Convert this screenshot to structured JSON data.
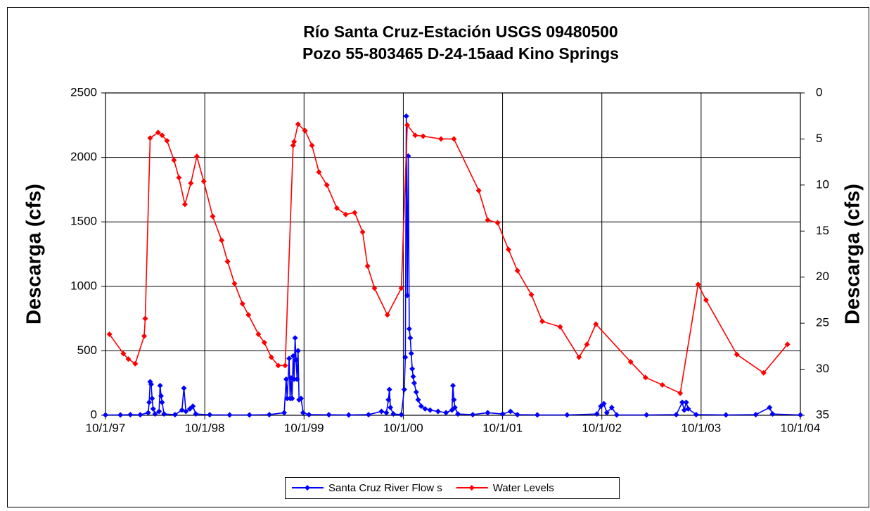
{
  "chart_data": {
    "type": "line",
    "title": [
      "Río Santa Cruz-Estación USGS 09480500",
      "Pozo 55-803465 D-24-15aad Kino Springs"
    ],
    "ylabel": "Descarga (cfs)",
    "y2label": "Descarga (cfs)",
    "xlim": [
      1997.75,
      2004.75
    ],
    "xticks": [
      {
        "value": 1997.75,
        "label": "10/1/97"
      },
      {
        "value": 1998.75,
        "label": "10/1/98"
      },
      {
        "value": 1999.75,
        "label": "10/1/99"
      },
      {
        "value": 2000.75,
        "label": "10/1/00"
      },
      {
        "value": 2001.75,
        "label": "10/1/01"
      },
      {
        "value": 2002.75,
        "label": "10/1/02"
      },
      {
        "value": 2003.75,
        "label": "10/1/03"
      },
      {
        "value": 2004.75,
        "label": "10/1/04"
      }
    ],
    "ylim": [
      0,
      2500
    ],
    "yticks": [
      0,
      500,
      1000,
      1500,
      2000,
      2500
    ],
    "y2lim": [
      35,
      0
    ],
    "y2ticks": [
      0,
      5,
      10,
      15,
      20,
      25,
      30,
      35
    ],
    "grid": true,
    "legend": "bottom",
    "series": [
      {
        "name": "Santa Cruz River Flow s",
        "color": "#0000ff",
        "x": [
          1997.75,
          1997.9,
          1998.0,
          1998.1,
          1998.18,
          1998.19,
          1998.2,
          1998.21,
          1998.22,
          1998.23,
          1998.25,
          1998.29,
          1998.3,
          1998.31,
          1998.32,
          1998.34,
          1998.45,
          1998.52,
          1998.54,
          1998.56,
          1998.6,
          1998.63,
          1998.66,
          1998.8,
          1999.0,
          1999.2,
          1999.4,
          1999.55,
          1999.57,
          1999.58,
          1999.6,
          1999.61,
          1999.62,
          1999.63,
          1999.64,
          1999.65,
          1999.66,
          1999.67,
          1999.68,
          1999.69,
          1999.7,
          1999.72,
          1999.74,
          1999.8,
          2000.0,
          2000.2,
          2000.4,
          2000.53,
          2000.58,
          2000.6,
          2000.61,
          2000.62,
          2000.65,
          2000.73,
          2000.76,
          2000.77,
          2000.78,
          2000.79,
          2000.8,
          2000.81,
          2000.82,
          2000.83,
          2000.84,
          2000.85,
          2000.86,
          2000.88,
          2000.9,
          2000.93,
          2000.97,
          2001.02,
          2001.1,
          2001.18,
          2001.24,
          2001.25,
          2001.26,
          2001.27,
          2001.3,
          2001.45,
          2001.6,
          2001.75,
          2001.83,
          2001.9,
          2002.1,
          2002.4,
          2002.7,
          2002.74,
          2002.77,
          2002.8,
          2002.85,
          2002.9,
          2003.2,
          2003.5,
          2003.56,
          2003.58,
          2003.6,
          2003.62,
          2003.7,
          2004.0,
          2004.3,
          2004.44,
          2004.47,
          2004.75
        ],
        "values": [
          3,
          3,
          5,
          4,
          20,
          100,
          260,
          240,
          130,
          50,
          10,
          30,
          230,
          150,
          100,
          10,
          5,
          40,
          210,
          30,
          50,
          70,
          10,
          4,
          3,
          3,
          5,
          20,
          280,
          130,
          440,
          130,
          290,
          130,
          460,
          280,
          600,
          430,
          280,
          500,
          120,
          130,
          20,
          5,
          4,
          3,
          5,
          30,
          20,
          120,
          200,
          60,
          10,
          5,
          200,
          450,
          2320,
          930,
          2010,
          670,
          600,
          480,
          360,
          300,
          250,
          180,
          120,
          70,
          50,
          40,
          30,
          20,
          40,
          230,
          120,
          60,
          10,
          5,
          20,
          10,
          30,
          5,
          3,
          3,
          10,
          70,
          90,
          20,
          60,
          3,
          3,
          5,
          100,
          40,
          100,
          50,
          5,
          3,
          5,
          60,
          10,
          3
        ]
      },
      {
        "name": "Water Levels",
        "color": "#ff0000",
        "axis": "y2",
        "x": [
          1997.79,
          1997.93,
          1997.98,
          1998.05,
          1998.14,
          1998.15,
          1998.2,
          1998.28,
          1998.32,
          1998.37,
          1998.44,
          1998.49,
          1998.55,
          1998.61,
          1998.67,
          1998.74,
          1998.83,
          1998.92,
          1998.98,
          1999.05,
          1999.13,
          1999.19,
          1999.29,
          1999.35,
          1999.42,
          1999.49,
          1999.56,
          1999.64,
          1999.65,
          1999.69,
          1999.76,
          1999.83,
          1999.9,
          1999.98,
          2000.08,
          2000.17,
          2000.26,
          2000.34,
          2000.39,
          2000.46,
          2000.59,
          2000.73,
          2000.79,
          2000.87,
          2000.95,
          2001.13,
          2001.26,
          2001.51,
          2001.6,
          2001.7,
          2001.81,
          2001.9,
          2002.04,
          2002.15,
          2002.33,
          2002.52,
          2002.6,
          2002.69,
          2003.04,
          2003.19,
          2003.36,
          2003.54,
          2003.72,
          2003.8,
          2004.11,
          2004.38,
          2004.62
        ],
        "values": [
          26.2,
          28.3,
          28.9,
          29.4,
          26.4,
          24.5,
          4.9,
          4.3,
          4.6,
          5.2,
          7.3,
          9.2,
          12.1,
          9.8,
          6.9,
          9.6,
          13.4,
          16.0,
          18.3,
          20.7,
          22.9,
          24.1,
          26.2,
          27.1,
          28.7,
          29.6,
          29.6,
          5.7,
          5.3,
          3.4,
          4.1,
          5.7,
          8.6,
          10.0,
          12.5,
          13.2,
          13.0,
          15.1,
          18.8,
          21.2,
          24.1,
          21.2,
          3.5,
          4.6,
          4.7,
          5.0,
          5.0,
          10.6,
          13.8,
          14.1,
          17.0,
          19.3,
          21.9,
          24.8,
          25.4,
          28.7,
          27.3,
          25.1,
          29.2,
          30.9,
          31.7,
          32.6,
          20.8,
          22.5,
          28.4,
          30.4,
          27.3
        ]
      }
    ]
  }
}
